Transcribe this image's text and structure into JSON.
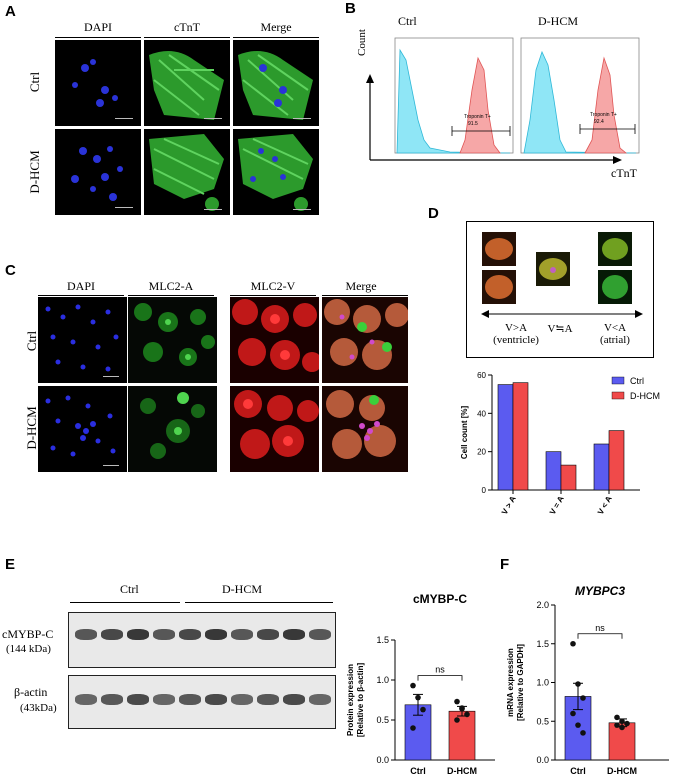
{
  "panels": {
    "A": "A",
    "B": "B",
    "C": "C",
    "D": "D",
    "E": "E",
    "F": "F"
  },
  "panelA": {
    "col_headers": [
      "DAPI",
      "cTnT",
      "Merge"
    ],
    "row_labels": [
      "Ctrl",
      "D-HCM"
    ]
  },
  "panelB": {
    "titles": [
      "Ctrl",
      "D-HCM"
    ],
    "ylabel": "Count",
    "xlabel": "cTnT",
    "gates": [
      {
        "label": "Troponin T+",
        "value": "91.5"
      },
      {
        "label": "Troponin T+",
        "value": "92.4"
      }
    ]
  },
  "panelC": {
    "col_headers": [
      "DAPI",
      "MLC2-A",
      "MLC2-V",
      "Merge"
    ],
    "row_labels": [
      "Ctrl",
      "D-HCM"
    ]
  },
  "panelD": {
    "arrow_labels": {
      "left": "V>A",
      "left_sub": "(ventricle)",
      "middle": "V≒A",
      "right": "V<A",
      "right_sub": "(atrial)"
    }
  },
  "panelE": {
    "groups": [
      "Ctrl",
      "D-HCM"
    ],
    "blot_labels": [
      {
        "name": "cMYBP-C",
        "size": "(144 kDa)"
      },
      {
        "name": "β-actin",
        "size": "(43kDa)"
      }
    ]
  },
  "colors": {
    "ctrl": "#5b5bf0",
    "dhcm": "#f04a4a",
    "flow_ctrl": "#7fe3f5",
    "flow_pos": "#f6a0a0"
  },
  "chart_data": [
    {
      "id": "D",
      "type": "bar",
      "categories": [
        "V > A",
        "V = A",
        "V < A"
      ],
      "series": [
        {
          "name": "Ctrl",
          "values": [
            55,
            20,
            24
          ]
        },
        {
          "name": "D-HCM",
          "values": [
            56,
            13,
            31
          ]
        }
      ],
      "ylabel": "Cell count [%]",
      "ylim": [
        0,
        60
      ],
      "yticks": [
        0,
        20,
        40,
        60
      ],
      "legend": "top-right"
    },
    {
      "id": "E",
      "type": "bar",
      "title": "cMYBP-C",
      "categories": [
        "Ctrl",
        "D-HCM"
      ],
      "values": [
        0.69,
        0.61
      ],
      "errors": [
        0.13,
        0.06
      ],
      "points": [
        [
          0.93,
          0.78,
          0.63,
          0.4
        ],
        [
          0.73,
          0.65,
          0.57,
          0.5,
          0.64
        ]
      ],
      "ylabel": "Protein expression\n[Relative to β-actin]",
      "ylabel_lines": [
        "Protein expression",
        "[Relative to β-actin]"
      ],
      "ylim": [
        0,
        1.5
      ],
      "yticks": [
        "0.0",
        "0.5",
        "1.0",
        "1.5"
      ],
      "significance": "ns"
    },
    {
      "id": "F",
      "type": "bar",
      "title": "MYBPC3",
      "categories": [
        "Ctrl",
        "D-HCM"
      ],
      "values": [
        0.82,
        0.48
      ],
      "errors": [
        0.17,
        0.05
      ],
      "points": [
        [
          1.5,
          0.98,
          0.8,
          0.6,
          0.45,
          0.35
        ],
        [
          0.55,
          0.5,
          0.47,
          0.45,
          0.42
        ]
      ],
      "ylabel_lines": [
        "mRNA expression",
        "[Relative to GAPDH]"
      ],
      "ylim": [
        0,
        2.0
      ],
      "yticks": [
        "0.0",
        "0.5",
        "1.0",
        "1.5",
        "2.0"
      ],
      "significance": "ns"
    }
  ]
}
